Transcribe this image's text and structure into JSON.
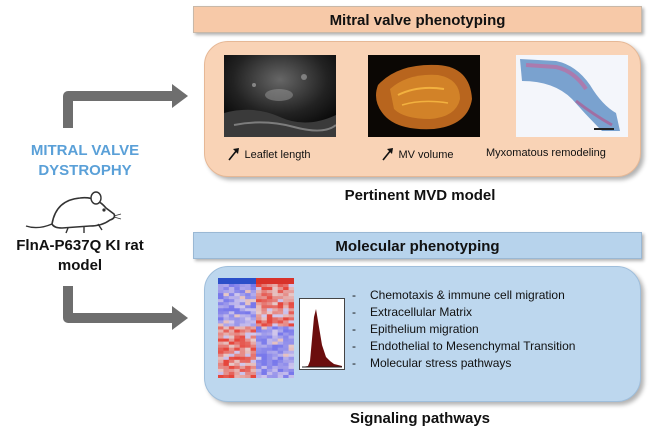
{
  "left": {
    "title_line1": "MITRAL VALVE",
    "title_line2": "DYSTROPHY",
    "model_line1": "FlnA-P637Q KI rat",
    "model_line2": "model",
    "title_color": "#5aa0d8"
  },
  "top": {
    "header": "Mitral valve phenotyping",
    "images": [
      {
        "icon": "echocardiography-image",
        "label": "Leaflet length"
      },
      {
        "icon": "mv-volume-image",
        "label": "MV volume"
      },
      {
        "icon": "histology-image",
        "label": "Myxomatous remodeling"
      }
    ],
    "caption": "Pertinent MVD model",
    "header_color": "#f7c9a8",
    "panel_color": "#f9d3b6"
  },
  "bottom": {
    "header": "Molecular phenotyping",
    "items": [
      "Chemotaxis & immune cell migration",
      "Extracellular Matrix",
      "Epithelium migration",
      "Endothelial to Mesenchymal Transition",
      "Molecular stress pathways"
    ],
    "caption": "Signaling pathways",
    "header_color": "#b7d3ec",
    "panel_color": "#bdd7ee"
  }
}
